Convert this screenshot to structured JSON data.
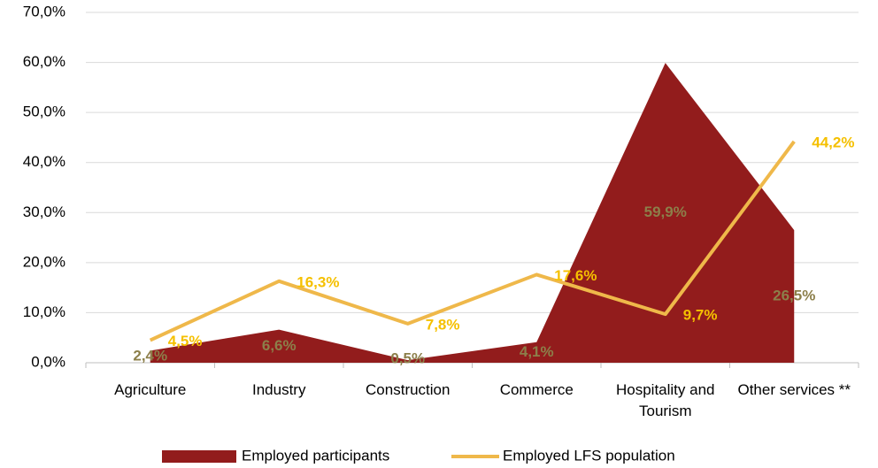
{
  "chart_data": {
    "type": "area_line",
    "categories": [
      "Agriculture",
      "Industry",
      "Construction",
      "Commerce",
      "Hospitality and Tourism",
      "Other services **"
    ],
    "series": [
      {
        "name": "Employed participants",
        "type": "area",
        "color": "#921c1c",
        "label_color": "#8c7f4a",
        "values": [
          2.4,
          6.6,
          0.5,
          4.1,
          59.9,
          26.5
        ],
        "value_labels": [
          "2,4%",
          "6,6%",
          "0,5%",
          "4,1%",
          "59,9%",
          "26,5%"
        ]
      },
      {
        "name": "Employed LFS population",
        "type": "line",
        "color": "#efb84a",
        "label_color": "#f5c000",
        "values": [
          4.5,
          16.3,
          7.8,
          17.6,
          9.7,
          44.2
        ],
        "value_labels": [
          "4,5%",
          "16,3%",
          "7,8%",
          "17,6%",
          "9,7%",
          "44,2%"
        ]
      }
    ],
    "ylim": [
      0,
      70
    ],
    "yticks": [
      {
        "value": 0,
        "label": "0,0%"
      },
      {
        "value": 10,
        "label": "10,0%"
      },
      {
        "value": 20,
        "label": "20,0%"
      },
      {
        "value": 30,
        "label": "30,0%"
      },
      {
        "value": 40,
        "label": "40,0%"
      },
      {
        "value": 50,
        "label": "50,0%"
      },
      {
        "value": 60,
        "label": "60,0%"
      },
      {
        "value": 70,
        "label": "70,0%"
      }
    ],
    "grid": true,
    "legend": "bottom"
  }
}
